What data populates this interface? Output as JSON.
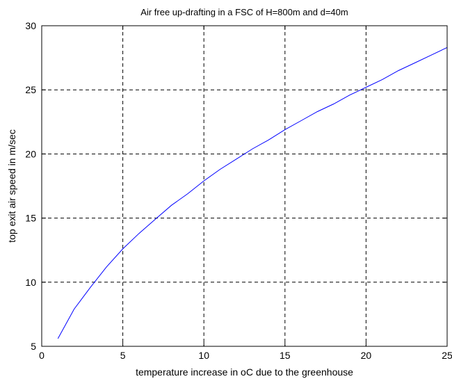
{
  "chart_data": {
    "type": "line",
    "title": "Air free up-drafting in a FSC of H=800m and d=40m",
    "xlabel": "temperature increase in oC due to the greenhouse",
    "ylabel": "top exit  air speed in m/sec",
    "xlim": [
      0,
      25
    ],
    "ylim": [
      5,
      30
    ],
    "xticks": [
      0,
      5,
      10,
      15,
      20,
      25
    ],
    "yticks": [
      5,
      10,
      15,
      20,
      25,
      30
    ],
    "xtick_labels": [
      "0",
      "5",
      "10",
      "15",
      "20",
      "25"
    ],
    "ytick_labels": [
      "5",
      "10",
      "15",
      "20",
      "25",
      "30"
    ],
    "grid": true,
    "grid_style": "dashed",
    "series": [
      {
        "color": "#0000ff",
        "x": [
          1,
          2,
          3,
          4,
          5,
          6,
          7,
          8,
          9,
          10,
          11,
          12,
          13,
          14,
          15,
          16,
          17,
          18,
          19,
          20,
          21,
          22,
          23,
          24,
          25
        ],
        "y": [
          5.6,
          7.9,
          9.6,
          11.2,
          12.6,
          13.8,
          14.9,
          16.0,
          16.9,
          17.9,
          18.8,
          19.6,
          20.4,
          21.1,
          21.9,
          22.6,
          23.3,
          23.9,
          24.6,
          25.2,
          25.8,
          26.5,
          27.1,
          27.7,
          28.3
        ]
      }
    ]
  }
}
